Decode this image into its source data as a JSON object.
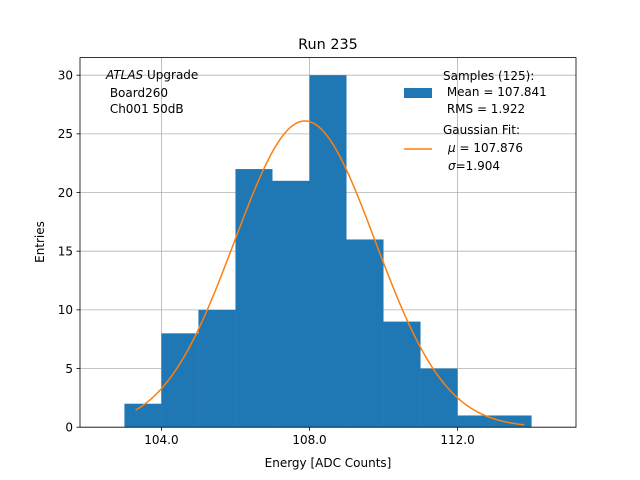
{
  "chart_data": {
    "type": "bar",
    "title": "Run 235",
    "xlabel": "Energy [ADC Counts]",
    "ylabel": "Entries",
    "xlim": [
      101.8,
      115.2
    ],
    "ylim": [
      0,
      31.5
    ],
    "grid": true,
    "x_ticks": [
      104.0,
      108.0,
      112.0
    ],
    "x_tick_labels": [
      "104.0",
      "108.0",
      "112.0"
    ],
    "y_ticks": [
      0,
      5,
      10,
      15,
      20,
      25,
      30
    ],
    "y_tick_labels": [
      "0",
      "5",
      "10",
      "15",
      "20",
      "25",
      "30"
    ],
    "histogram": {
      "bin_edges": [
        103.0,
        104.0,
        105.0,
        106.0,
        107.0,
        108.0,
        109.0,
        110.0,
        111.0,
        112.0,
        113.0,
        114.0
      ],
      "counts": [
        2,
        8,
        10,
        22,
        21,
        30,
        16,
        9,
        5,
        1,
        1
      ],
      "color": "#1f77b4"
    },
    "fit": {
      "type": "gaussian",
      "amplitude": 26.1,
      "mu": 107.876,
      "sigma": 1.904,
      "x_range": [
        103.3,
        113.8
      ],
      "color": "#ff7f0e"
    },
    "annotation": {
      "italic": "ATLAS",
      "first_rest": " Upgrade",
      "lines": [
        " Board260",
        " Ch001 50dB"
      ]
    },
    "legend": {
      "position": "upper right",
      "entries": [
        {
          "kind": "patch",
          "lines": [
            "Samples (125):",
            " Mean = 107.841",
            " RMS = 1.922"
          ]
        },
        {
          "kind": "line",
          "lines": [
            "Gaussian Fit:",
            "$\\mu$ = 107.876",
            "$\\sigma$=1.904"
          ]
        }
      ]
    }
  }
}
